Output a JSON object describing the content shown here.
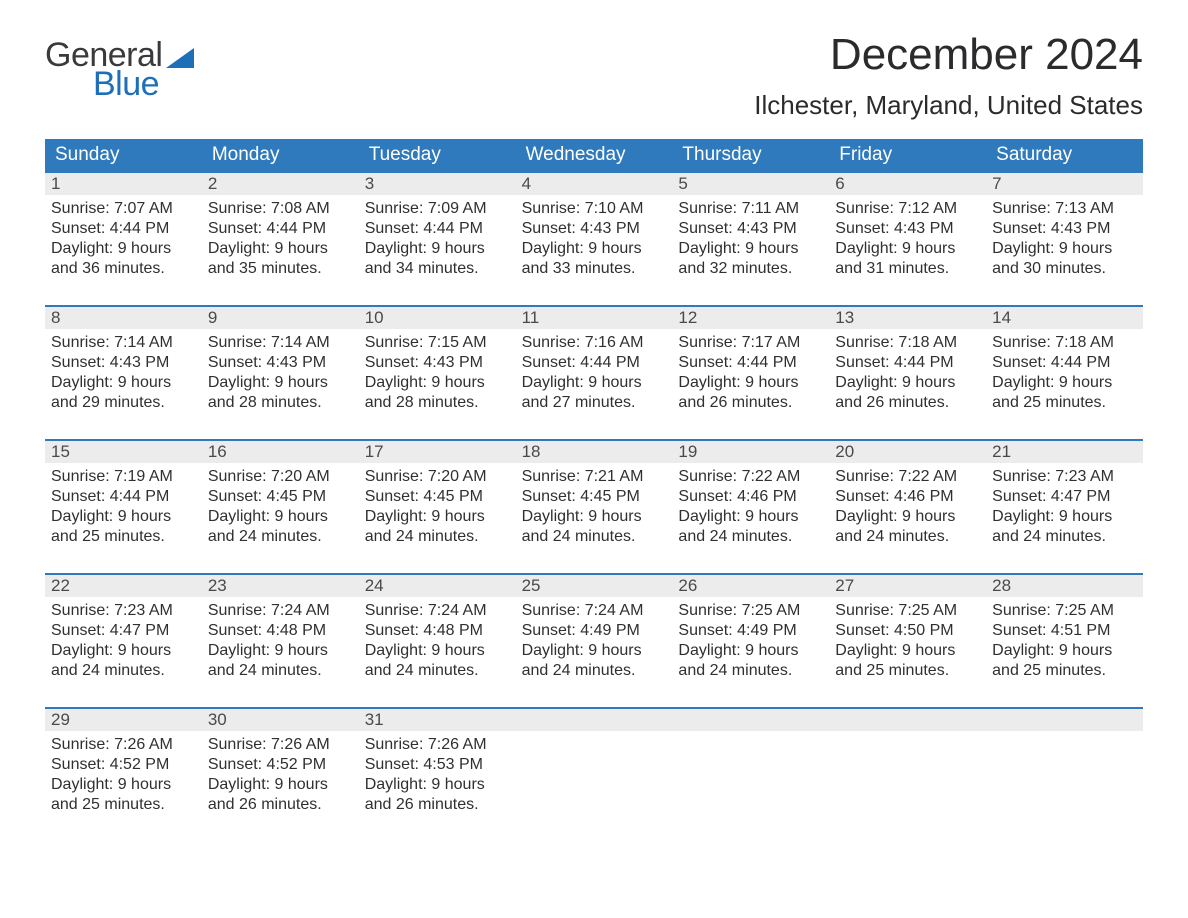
{
  "brand": {
    "word1": "General",
    "word2": "Blue",
    "accent_color": "#1e6fb8"
  },
  "title": "December 2024",
  "location": "Ilchester, Maryland, United States",
  "colors": {
    "header_bg": "#2f79bd",
    "header_text": "#ffffff",
    "daynum_bg": "#ececec",
    "week_border": "#2f79bd",
    "body_text": "#303030",
    "background": "#ffffff"
  },
  "typography": {
    "title_fontsize": 44,
    "location_fontsize": 26,
    "dayheader_fontsize": 19,
    "cell_fontsize": 16
  },
  "day_labels": [
    "Sunday",
    "Monday",
    "Tuesday",
    "Wednesday",
    "Thursday",
    "Friday",
    "Saturday"
  ],
  "weeks": [
    [
      {
        "n": "1",
        "sunrise": "Sunrise: 7:07 AM",
        "sunset": "Sunset: 4:44 PM",
        "dl1": "Daylight: 9 hours",
        "dl2": "and 36 minutes."
      },
      {
        "n": "2",
        "sunrise": "Sunrise: 7:08 AM",
        "sunset": "Sunset: 4:44 PM",
        "dl1": "Daylight: 9 hours",
        "dl2": "and 35 minutes."
      },
      {
        "n": "3",
        "sunrise": "Sunrise: 7:09 AM",
        "sunset": "Sunset: 4:44 PM",
        "dl1": "Daylight: 9 hours",
        "dl2": "and 34 minutes."
      },
      {
        "n": "4",
        "sunrise": "Sunrise: 7:10 AM",
        "sunset": "Sunset: 4:43 PM",
        "dl1": "Daylight: 9 hours",
        "dl2": "and 33 minutes."
      },
      {
        "n": "5",
        "sunrise": "Sunrise: 7:11 AM",
        "sunset": "Sunset: 4:43 PM",
        "dl1": "Daylight: 9 hours",
        "dl2": "and 32 minutes."
      },
      {
        "n": "6",
        "sunrise": "Sunrise: 7:12 AM",
        "sunset": "Sunset: 4:43 PM",
        "dl1": "Daylight: 9 hours",
        "dl2": "and 31 minutes."
      },
      {
        "n": "7",
        "sunrise": "Sunrise: 7:13 AM",
        "sunset": "Sunset: 4:43 PM",
        "dl1": "Daylight: 9 hours",
        "dl2": "and 30 minutes."
      }
    ],
    [
      {
        "n": "8",
        "sunrise": "Sunrise: 7:14 AM",
        "sunset": "Sunset: 4:43 PM",
        "dl1": "Daylight: 9 hours",
        "dl2": "and 29 minutes."
      },
      {
        "n": "9",
        "sunrise": "Sunrise: 7:14 AM",
        "sunset": "Sunset: 4:43 PM",
        "dl1": "Daylight: 9 hours",
        "dl2": "and 28 minutes."
      },
      {
        "n": "10",
        "sunrise": "Sunrise: 7:15 AM",
        "sunset": "Sunset: 4:43 PM",
        "dl1": "Daylight: 9 hours",
        "dl2": "and 28 minutes."
      },
      {
        "n": "11",
        "sunrise": "Sunrise: 7:16 AM",
        "sunset": "Sunset: 4:44 PM",
        "dl1": "Daylight: 9 hours",
        "dl2": "and 27 minutes."
      },
      {
        "n": "12",
        "sunrise": "Sunrise: 7:17 AM",
        "sunset": "Sunset: 4:44 PM",
        "dl1": "Daylight: 9 hours",
        "dl2": "and 26 minutes."
      },
      {
        "n": "13",
        "sunrise": "Sunrise: 7:18 AM",
        "sunset": "Sunset: 4:44 PM",
        "dl1": "Daylight: 9 hours",
        "dl2": "and 26 minutes."
      },
      {
        "n": "14",
        "sunrise": "Sunrise: 7:18 AM",
        "sunset": "Sunset: 4:44 PM",
        "dl1": "Daylight: 9 hours",
        "dl2": "and 25 minutes."
      }
    ],
    [
      {
        "n": "15",
        "sunrise": "Sunrise: 7:19 AM",
        "sunset": "Sunset: 4:44 PM",
        "dl1": "Daylight: 9 hours",
        "dl2": "and 25 minutes."
      },
      {
        "n": "16",
        "sunrise": "Sunrise: 7:20 AM",
        "sunset": "Sunset: 4:45 PM",
        "dl1": "Daylight: 9 hours",
        "dl2": "and 24 minutes."
      },
      {
        "n": "17",
        "sunrise": "Sunrise: 7:20 AM",
        "sunset": "Sunset: 4:45 PM",
        "dl1": "Daylight: 9 hours",
        "dl2": "and 24 minutes."
      },
      {
        "n": "18",
        "sunrise": "Sunrise: 7:21 AM",
        "sunset": "Sunset: 4:45 PM",
        "dl1": "Daylight: 9 hours",
        "dl2": "and 24 minutes."
      },
      {
        "n": "19",
        "sunrise": "Sunrise: 7:22 AM",
        "sunset": "Sunset: 4:46 PM",
        "dl1": "Daylight: 9 hours",
        "dl2": "and 24 minutes."
      },
      {
        "n": "20",
        "sunrise": "Sunrise: 7:22 AM",
        "sunset": "Sunset: 4:46 PM",
        "dl1": "Daylight: 9 hours",
        "dl2": "and 24 minutes."
      },
      {
        "n": "21",
        "sunrise": "Sunrise: 7:23 AM",
        "sunset": "Sunset: 4:47 PM",
        "dl1": "Daylight: 9 hours",
        "dl2": "and 24 minutes."
      }
    ],
    [
      {
        "n": "22",
        "sunrise": "Sunrise: 7:23 AM",
        "sunset": "Sunset: 4:47 PM",
        "dl1": "Daylight: 9 hours",
        "dl2": "and 24 minutes."
      },
      {
        "n": "23",
        "sunrise": "Sunrise: 7:24 AM",
        "sunset": "Sunset: 4:48 PM",
        "dl1": "Daylight: 9 hours",
        "dl2": "and 24 minutes."
      },
      {
        "n": "24",
        "sunrise": "Sunrise: 7:24 AM",
        "sunset": "Sunset: 4:48 PM",
        "dl1": "Daylight: 9 hours",
        "dl2": "and 24 minutes."
      },
      {
        "n": "25",
        "sunrise": "Sunrise: 7:24 AM",
        "sunset": "Sunset: 4:49 PM",
        "dl1": "Daylight: 9 hours",
        "dl2": "and 24 minutes."
      },
      {
        "n": "26",
        "sunrise": "Sunrise: 7:25 AM",
        "sunset": "Sunset: 4:49 PM",
        "dl1": "Daylight: 9 hours",
        "dl2": "and 24 minutes."
      },
      {
        "n": "27",
        "sunrise": "Sunrise: 7:25 AM",
        "sunset": "Sunset: 4:50 PM",
        "dl1": "Daylight: 9 hours",
        "dl2": "and 25 minutes."
      },
      {
        "n": "28",
        "sunrise": "Sunrise: 7:25 AM",
        "sunset": "Sunset: 4:51 PM",
        "dl1": "Daylight: 9 hours",
        "dl2": "and 25 minutes."
      }
    ],
    [
      {
        "n": "29",
        "sunrise": "Sunrise: 7:26 AM",
        "sunset": "Sunset: 4:52 PM",
        "dl1": "Daylight: 9 hours",
        "dl2": "and 25 minutes."
      },
      {
        "n": "30",
        "sunrise": "Sunrise: 7:26 AM",
        "sunset": "Sunset: 4:52 PM",
        "dl1": "Daylight: 9 hours",
        "dl2": "and 26 minutes."
      },
      {
        "n": "31",
        "sunrise": "Sunrise: 7:26 AM",
        "sunset": "Sunset: 4:53 PM",
        "dl1": "Daylight: 9 hours",
        "dl2": "and 26 minutes."
      },
      null,
      null,
      null,
      null
    ]
  ]
}
